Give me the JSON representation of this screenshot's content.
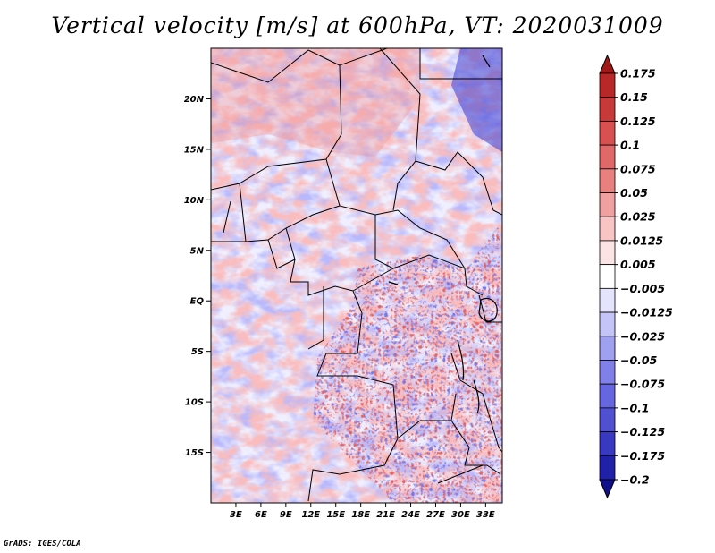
{
  "title": "Vertical velocity [m/s] at 600hPa, VT: 2020031009",
  "credit": "GrADS: IGES/COLA",
  "chart_data": {
    "type": "heatmap",
    "title": "Vertical velocity [m/s] at 600hPa, VT: 2020031009",
    "variable": "Vertical velocity",
    "units": "m/s",
    "level": "600hPa",
    "valid_time": "2020031009",
    "lon_range": [
      0,
      35
    ],
    "lat_range": [
      -20,
      25
    ],
    "x_ticks": [
      {
        "value": 3,
        "label": "3E"
      },
      {
        "value": 6,
        "label": "6E"
      },
      {
        "value": 9,
        "label": "9E"
      },
      {
        "value": 12,
        "label": "12E"
      },
      {
        "value": 15,
        "label": "15E"
      },
      {
        "value": 18,
        "label": "18E"
      },
      {
        "value": 21,
        "label": "21E"
      },
      {
        "value": 24,
        "label": "24E"
      },
      {
        "value": 27,
        "label": "27E"
      },
      {
        "value": 30,
        "label": "30E"
      },
      {
        "value": 33,
        "label": "33E"
      }
    ],
    "y_ticks": [
      {
        "value": 20,
        "label": "20N"
      },
      {
        "value": 15,
        "label": "15N"
      },
      {
        "value": 10,
        "label": "10N"
      },
      {
        "value": 5,
        "label": "5N"
      },
      {
        "value": 0,
        "label": "EQ"
      },
      {
        "value": -5,
        "label": "5S"
      },
      {
        "value": -10,
        "label": "10S"
      },
      {
        "value": -15,
        "label": "15S"
      }
    ],
    "colorbar": {
      "labels": [
        "0.175",
        "0.15",
        "0.125",
        "0.1",
        "0.075",
        "0.05",
        "0.025",
        "0.0125",
        "0.005",
        "−0.005",
        "−0.0125",
        "−0.025",
        "−0.05",
        "−0.075",
        "−0.1",
        "−0.125",
        "−0.175",
        "−0.2"
      ],
      "colors": [
        "#a01818",
        "#b82828",
        "#c83a3a",
        "#d85050",
        "#e06868",
        "#e88080",
        "#f0a0a0",
        "#f8c4c4",
        "#fce4e4",
        "#ffffff",
        "#e4e4fc",
        "#c4c4f8",
        "#a0a0f0",
        "#8080e8",
        "#6666e0",
        "#5050d0",
        "#3838c0",
        "#2020a8",
        "#10108c"
      ]
    }
  }
}
